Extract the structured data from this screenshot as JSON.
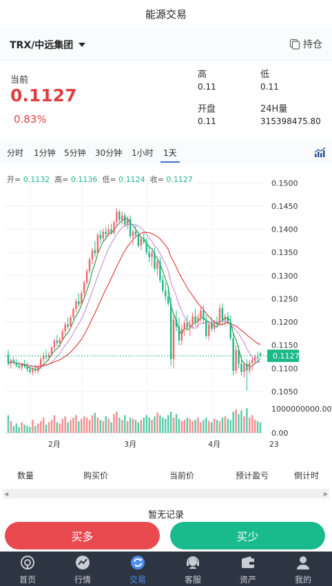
{
  "page": {
    "title": "能源交易"
  },
  "pair": {
    "name": "TRX/中远集团",
    "hold_label": "持仓"
  },
  "quote": {
    "current_label": "当前",
    "price": "0.1127",
    "change": "0.83%",
    "high_label": "高",
    "high": "0.11",
    "low_label": "低",
    "low": "0.11",
    "open_label": "开盘",
    "open": "0.11",
    "vol24_label": "24H量",
    "vol24": "315398475.80"
  },
  "periods": [
    "分时",
    "1分钟",
    "5分钟",
    "30分钟",
    "1小时",
    "1天"
  ],
  "active_period": "1天",
  "ohlc": {
    "open_label": "开=",
    "open": "0.1132",
    "high_label": "高=",
    "high": "0.1136",
    "low_label": "低=",
    "low": "0.1124",
    "close_label": "收=",
    "close": "0.1127"
  },
  "chart_data": {
    "type": "candlestick",
    "y_ticks": [
      "0.1500",
      "0.1450",
      "0.1400",
      "0.1350",
      "0.1300",
      "0.1250",
      "0.1200",
      "0.1150",
      "0.1100",
      "0.1050"
    ],
    "ylim": [
      0.1035,
      0.1505
    ],
    "current_price": 0.1127,
    "current_price_label": "0.1127",
    "x_ticks": [
      {
        "label": "2月",
        "index": 17
      },
      {
        "label": "3月",
        "index": 45
      },
      {
        "label": "4月",
        "index": 76
      },
      {
        "label": "23",
        "index": 98
      }
    ],
    "volume_ticks": [
      "1000000000.00",
      "0.00"
    ],
    "volume_max": 1000000000,
    "candles": [
      [
        0.113,
        0.114,
        0.1105,
        0.111
      ],
      [
        0.111,
        0.1122,
        0.11,
        0.1118
      ],
      [
        0.1118,
        0.1125,
        0.1108,
        0.1112
      ],
      [
        0.1112,
        0.112,
        0.1102,
        0.1106
      ],
      [
        0.1106,
        0.1115,
        0.1098,
        0.1102
      ],
      [
        0.1102,
        0.1112,
        0.1095,
        0.1108
      ],
      [
        0.1108,
        0.1118,
        0.11,
        0.1104
      ],
      [
        0.1104,
        0.1112,
        0.1092,
        0.1098
      ],
      [
        0.1098,
        0.1106,
        0.1088,
        0.1092
      ],
      [
        0.1092,
        0.1102,
        0.1085,
        0.1098
      ],
      [
        0.1098,
        0.1108,
        0.109,
        0.1095
      ],
      [
        0.1095,
        0.1106,
        0.1088,
        0.1102
      ],
      [
        0.1102,
        0.1125,
        0.11,
        0.112
      ],
      [
        0.112,
        0.1135,
        0.1112,
        0.1128
      ],
      [
        0.1128,
        0.114,
        0.1118,
        0.1124
      ],
      [
        0.1124,
        0.1135,
        0.1115,
        0.113
      ],
      [
        0.113,
        0.1148,
        0.1125,
        0.1145
      ],
      [
        0.1145,
        0.1165,
        0.114,
        0.116
      ],
      [
        0.116,
        0.1172,
        0.1148,
        0.1155
      ],
      [
        0.1155,
        0.1168,
        0.1145,
        0.1162
      ],
      [
        0.1162,
        0.1185,
        0.1158,
        0.118
      ],
      [
        0.118,
        0.12,
        0.1172,
        0.1195
      ],
      [
        0.1195,
        0.121,
        0.1185,
        0.119
      ],
      [
        0.119,
        0.1215,
        0.1185,
        0.121
      ],
      [
        0.121,
        0.1232,
        0.1205,
        0.1228
      ],
      [
        0.1228,
        0.125,
        0.122,
        0.1245
      ],
      [
        0.1245,
        0.1262,
        0.1232,
        0.1238
      ],
      [
        0.1238,
        0.1268,
        0.1235,
        0.1262
      ],
      [
        0.1262,
        0.129,
        0.1255,
        0.1285
      ],
      [
        0.1285,
        0.1315,
        0.128,
        0.131
      ],
      [
        0.131,
        0.134,
        0.1305,
        0.1335
      ],
      [
        0.1335,
        0.136,
        0.1325,
        0.1355
      ],
      [
        0.1355,
        0.1375,
        0.134,
        0.1348
      ],
      [
        0.1348,
        0.1392,
        0.1345,
        0.1388
      ],
      [
        0.1388,
        0.1398,
        0.137,
        0.138
      ],
      [
        0.138,
        0.1402,
        0.1372,
        0.1395
      ],
      [
        0.1395,
        0.1405,
        0.1382,
        0.139
      ],
      [
        0.139,
        0.141,
        0.1385,
        0.14
      ],
      [
        0.14,
        0.1412,
        0.1388,
        0.1392
      ],
      [
        0.1392,
        0.142,
        0.1388,
        0.1415
      ],
      [
        0.1415,
        0.1445,
        0.1408,
        0.1438
      ],
      [
        0.1438,
        0.1442,
        0.1415,
        0.142
      ],
      [
        0.142,
        0.1438,
        0.141,
        0.143
      ],
      [
        0.143,
        0.1436,
        0.1405,
        0.141
      ],
      [
        0.141,
        0.1428,
        0.14,
        0.1422
      ],
      [
        0.1422,
        0.143,
        0.138,
        0.1385
      ],
      [
        0.1385,
        0.14,
        0.1365,
        0.1395
      ],
      [
        0.1395,
        0.1408,
        0.1382,
        0.1388
      ],
      [
        0.1388,
        0.1395,
        0.136,
        0.1365
      ],
      [
        0.1365,
        0.1385,
        0.1355,
        0.138
      ],
      [
        0.138,
        0.1395,
        0.1368,
        0.1372
      ],
      [
        0.1372,
        0.1382,
        0.1345,
        0.135
      ],
      [
        0.135,
        0.1365,
        0.133,
        0.134
      ],
      [
        0.134,
        0.1355,
        0.132,
        0.1348
      ],
      [
        0.1348,
        0.136,
        0.131,
        0.1315
      ],
      [
        0.1315,
        0.1335,
        0.13,
        0.133
      ],
      [
        0.133,
        0.134,
        0.1285,
        0.129
      ],
      [
        0.129,
        0.13,
        0.1262,
        0.1268
      ],
      [
        0.1268,
        0.1285,
        0.1245,
        0.1255
      ],
      [
        0.1255,
        0.1275,
        0.1235,
        0.124
      ],
      [
        0.124,
        0.1252,
        0.1105,
        0.112
      ],
      [
        0.112,
        0.1215,
        0.11,
        0.1205
      ],
      [
        0.1205,
        0.1225,
        0.118,
        0.119
      ],
      [
        0.119,
        0.121,
        0.115,
        0.116
      ],
      [
        0.116,
        0.1195,
        0.115,
        0.1185
      ],
      [
        0.1185,
        0.1205,
        0.117,
        0.1198
      ],
      [
        0.1198,
        0.1215,
        0.118,
        0.1188
      ],
      [
        0.1188,
        0.1205,
        0.117,
        0.1195
      ],
      [
        0.1195,
        0.122,
        0.1185,
        0.1212
      ],
      [
        0.1212,
        0.1228,
        0.119,
        0.12
      ],
      [
        0.12,
        0.1218,
        0.1188,
        0.121
      ],
      [
        0.121,
        0.1232,
        0.12,
        0.1225
      ],
      [
        0.1225,
        0.1235,
        0.1195,
        0.1205
      ],
      [
        0.1205,
        0.1215,
        0.1165,
        0.117
      ],
      [
        0.117,
        0.12,
        0.116,
        0.1195
      ],
      [
        0.1195,
        0.121,
        0.118,
        0.1185
      ],
      [
        0.1185,
        0.1205,
        0.1178,
        0.12
      ],
      [
        0.12,
        0.1212,
        0.1188,
        0.1195
      ],
      [
        0.1195,
        0.1238,
        0.119,
        0.123
      ],
      [
        0.123,
        0.124,
        0.1195,
        0.1205
      ],
      [
        0.1205,
        0.1218,
        0.119,
        0.1212
      ],
      [
        0.1212,
        0.1222,
        0.1195,
        0.12
      ],
      [
        0.12,
        0.1215,
        0.116,
        0.1165
      ],
      [
        0.1165,
        0.1175,
        0.1085,
        0.1095
      ],
      [
        0.1095,
        0.115,
        0.1088,
        0.114
      ],
      [
        0.114,
        0.1148,
        0.11,
        0.111
      ],
      [
        0.111,
        0.1125,
        0.1085,
        0.1092
      ],
      [
        0.1092,
        0.1115,
        0.108,
        0.1108
      ],
      [
        0.1108,
        0.112,
        0.1052,
        0.1095
      ],
      [
        0.1095,
        0.1118,
        0.1088,
        0.1112
      ],
      [
        0.1112,
        0.1122,
        0.1095,
        0.1118
      ],
      [
        0.1118,
        0.113,
        0.1108,
        0.1125
      ],
      [
        0.1125,
        0.1136,
        0.1112,
        0.1122
      ],
      [
        0.1132,
        0.1136,
        0.1124,
        0.1127
      ]
    ],
    "volumes": [
      0.3,
      0.2,
      0.12,
      0.16,
      0.1,
      0.18,
      0.14,
      0.12,
      0.1,
      0.22,
      0.12,
      0.16,
      0.2,
      0.26,
      0.14,
      0.18,
      0.22,
      0.3,
      0.18,
      0.16,
      0.24,
      0.28,
      0.18,
      0.22,
      0.26,
      0.3,
      0.2,
      0.24,
      0.28,
      0.26,
      0.22,
      0.3,
      0.34,
      0.26,
      0.22,
      0.2,
      0.28,
      0.24,
      0.18,
      0.32,
      0.36,
      0.26,
      0.22,
      0.3,
      0.2,
      0.26,
      0.24,
      0.22,
      0.18,
      0.22,
      0.26,
      0.3,
      0.26,
      0.22,
      0.28,
      0.34,
      0.3,
      0.26,
      0.24,
      0.3,
      0.36,
      0.26,
      0.32,
      0.24,
      0.2,
      0.22,
      0.26,
      0.24,
      0.2,
      0.22,
      0.26,
      0.18,
      0.22,
      0.26,
      0.2,
      0.18,
      0.24,
      0.22,
      0.2,
      0.26,
      0.28,
      0.24,
      0.22,
      0.36,
      0.4,
      0.32,
      0.38,
      0.28,
      0.42,
      0.26,
      0.3,
      0.22,
      0.2,
      0.18
    ]
  },
  "table": {
    "headers": [
      "数量",
      "购买价",
      "当前价",
      "预计盈亏",
      "倒计时"
    ],
    "empty_text": "暂无记录"
  },
  "actions": {
    "buy": "买多",
    "sell": "买少"
  },
  "tabs": [
    {
      "label": "首页",
      "icon": "home-icon"
    },
    {
      "label": "行情",
      "icon": "market-icon"
    },
    {
      "label": "交易",
      "icon": "trade-icon",
      "active": true
    },
    {
      "label": "客服",
      "icon": "service-icon"
    },
    {
      "label": "资产",
      "icon": "wallet-icon"
    },
    {
      "label": "我的",
      "icon": "user-icon"
    }
  ],
  "colors": {
    "up": "#f2666a",
    "down": "#1cb98a",
    "accent": "#4e8cf0",
    "price_red": "#e03e3e"
  }
}
